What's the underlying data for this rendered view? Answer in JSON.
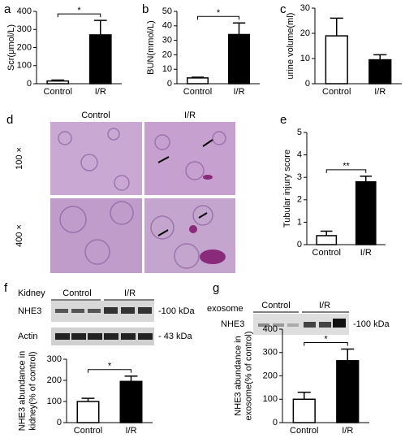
{
  "chart_data": [
    {
      "type": "bar",
      "panel": "a",
      "ylabel": [
        "Scr(μmol/L)"
      ],
      "categories": [
        "Control",
        "I/R"
      ],
      "values": [
        15,
        270
      ],
      "errors": [
        5,
        80
      ],
      "colors": [
        "#ffffff",
        "#000000"
      ],
      "edgecolor": "#000000",
      "ylim": [
        0,
        400
      ],
      "yticks": [
        0,
        100,
        200,
        300,
        400
      ],
      "significance": "*"
    },
    {
      "type": "bar",
      "panel": "b",
      "ylabel": [
        "BUN(mmol/L)"
      ],
      "categories": [
        "Control",
        "I/R"
      ],
      "values": [
        4,
        34
      ],
      "errors": [
        0.5,
        8
      ],
      "colors": [
        "#ffffff",
        "#000000"
      ],
      "edgecolor": "#000000",
      "ylim": [
        0,
        50
      ],
      "yticks": [
        0,
        10,
        20,
        30,
        40,
        50
      ],
      "significance": "*"
    },
    {
      "type": "bar",
      "panel": "c",
      "ylabel": [
        "urine volume(ml)"
      ],
      "categories": [
        "Control",
        "I/R"
      ],
      "values": [
        19,
        9.5
      ],
      "errors": [
        7,
        2
      ],
      "colors": [
        "#ffffff",
        "#000000"
      ],
      "edgecolor": "#000000",
      "ylim": [
        0,
        30
      ],
      "yticks": [
        0,
        10,
        20,
        30
      ]
    },
    {
      "type": "bar",
      "panel": "e",
      "ylabel": [
        "Tubular injury score"
      ],
      "categories": [
        "Control",
        "I/R"
      ],
      "values": [
        0.4,
        2.8
      ],
      "errors": [
        0.2,
        0.25
      ],
      "colors": [
        "#ffffff",
        "#000000"
      ],
      "edgecolor": "#000000",
      "ylim": [
        0,
        5
      ],
      "yticks": [
        0,
        1,
        2,
        3,
        4,
        5
      ],
      "significance": "**"
    },
    {
      "type": "bar",
      "panel": "f",
      "ylabel": [
        "NHE3 abundance in",
        "kidney(% of control)"
      ],
      "categories": [
        "Control",
        "I/R"
      ],
      "values": [
        100,
        195
      ],
      "errors": [
        15,
        25
      ],
      "colors": [
        "#ffffff",
        "#000000"
      ],
      "edgecolor": "#000000",
      "ylim": [
        0,
        300
      ],
      "yticks": [
        0,
        100,
        200,
        300
      ],
      "significance": "*"
    },
    {
      "type": "bar",
      "panel": "g",
      "ylabel": [
        "NHE3 abundance in",
        "exosome(% of control)"
      ],
      "categories": [
        "Control",
        "I/R"
      ],
      "values": [
        100,
        265
      ],
      "errors": [
        30,
        50
      ],
      "colors": [
        "#ffffff",
        "#000000"
      ],
      "edgecolor": "#000000",
      "ylim": [
        0,
        400
      ],
      "yticks": [
        0,
        100,
        200,
        300,
        400
      ],
      "significance": "*"
    }
  ],
  "histology": {
    "panel": "d",
    "columns": [
      "Control",
      "I/R"
    ],
    "rows": [
      "100 ×",
      "400 ×"
    ]
  },
  "blot_kidney": {
    "sample": "Kidney",
    "groups": [
      "Control",
      "I/R"
    ],
    "bands": [
      "NHE3",
      "Actin"
    ],
    "sizes": [
      "-100 kDa",
      "- 43 kDa"
    ]
  },
  "blot_exosome": {
    "sample": "exosome",
    "groups": [
      "Control",
      "I/R"
    ],
    "bands": [
      "NHE3"
    ],
    "sizes": [
      "-100 kDa"
    ]
  }
}
